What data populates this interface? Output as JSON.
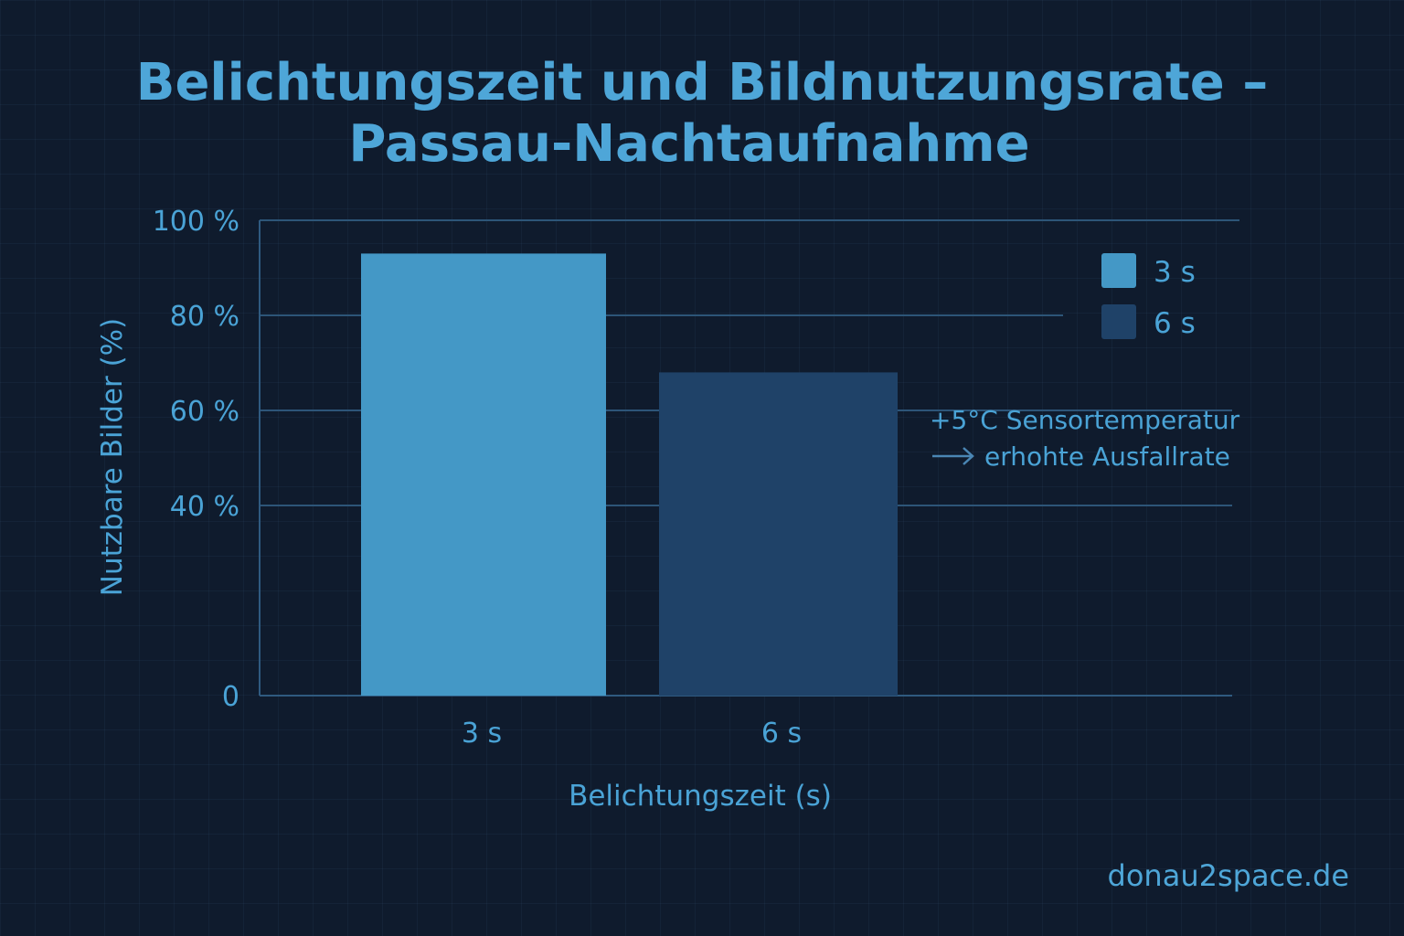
{
  "site": "donau2space.de",
  "chart_data": {
    "type": "bar",
    "title_lines": [
      "Belichtungszeit und Bildnutzungsrate –",
      "Passau-Nachtaufnahme"
    ],
    "xlabel": "Belichtungszeit (s)",
    "ylabel": "Nutzbare Bilder (%)",
    "categories": [
      "3 s",
      "6 s"
    ],
    "values": [
      93,
      68
    ],
    "colors": [
      "#4498c6",
      "#1f4268"
    ],
    "ylim": [
      0,
      100
    ],
    "yticks": [
      {
        "value": 0,
        "label": "0"
      },
      {
        "value": 40,
        "label": "40 %"
      },
      {
        "value": 60,
        "label": "60 %"
      },
      {
        "value": 80,
        "label": "80 %"
      },
      {
        "value": 100,
        "label": "100 %"
      }
    ],
    "legend": {
      "position": "top-right",
      "entries": [
        {
          "label": "3 s",
          "color": "#4498c6"
        },
        {
          "label": "6 s",
          "color": "#1f4268"
        }
      ]
    },
    "annotation": {
      "lines": [
        "+5°C Sensortemperatur",
        "erhohte Ausfallrate"
      ],
      "target_category": "6 s"
    },
    "grid": true,
    "grid_color": "#2d5578",
    "axis_color": "#2f5a80"
  }
}
